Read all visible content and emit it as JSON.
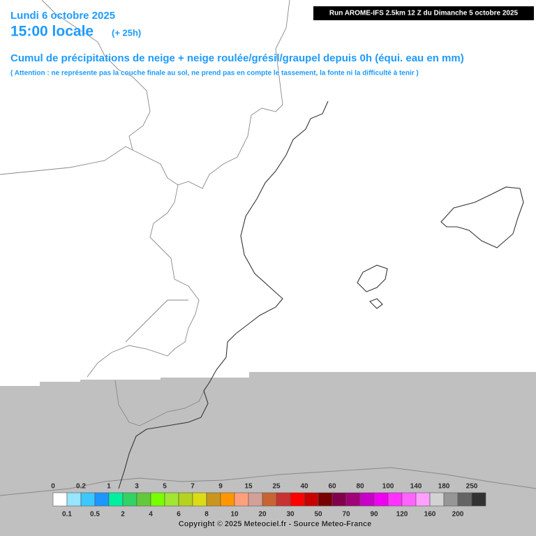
{
  "header": {
    "date": "Lundi 6 octobre 2025",
    "time": "15:00 locale",
    "lead": "(+ 25h)",
    "run": "Run AROME-IFS 2.5km 12 Z du Dimanche 5 octobre 2025",
    "title": "Cumul de précipitations de neige + neige roulée/grésil/graupel depuis 0h (équi. eau en mm)",
    "note": "( Attention : ne représente pas la couche finale au sol, ne prend pas en compte le tassement, la fonte ni la difficulté à tenir )"
  },
  "legend": {
    "labels": [
      0,
      0.1,
      0.2,
      0.5,
      1,
      2,
      3,
      4,
      5,
      6,
      7,
      8,
      9,
      10,
      15,
      20,
      25,
      30,
      40,
      50,
      60,
      70,
      80,
      90,
      100,
      120,
      140,
      160,
      180,
      200,
      250
    ],
    "colors": [
      "#ffffff",
      "#96e6ff",
      "#3cc8ff",
      "#1e96ff",
      "#00f0a0",
      "#32d264",
      "#64c83c",
      "#78ff00",
      "#a0e632",
      "#b4d21e",
      "#dcdc14",
      "#c8961e",
      "#ff9600",
      "#ffa07a",
      "#d2a096",
      "#c86432",
      "#c83232",
      "#ff0000",
      "#c80000",
      "#780000",
      "#82004b",
      "#a00078",
      "#c800c8",
      "#f000f0",
      "#ff32ff",
      "#ff64ff",
      "#ffa0ff",
      "#d2d2d2",
      "#969696",
      "#646464",
      "#323232"
    ]
  },
  "footer": {
    "copyright": "Copyright © 2025 Meteociel.fr - Source Meteo-France"
  }
}
